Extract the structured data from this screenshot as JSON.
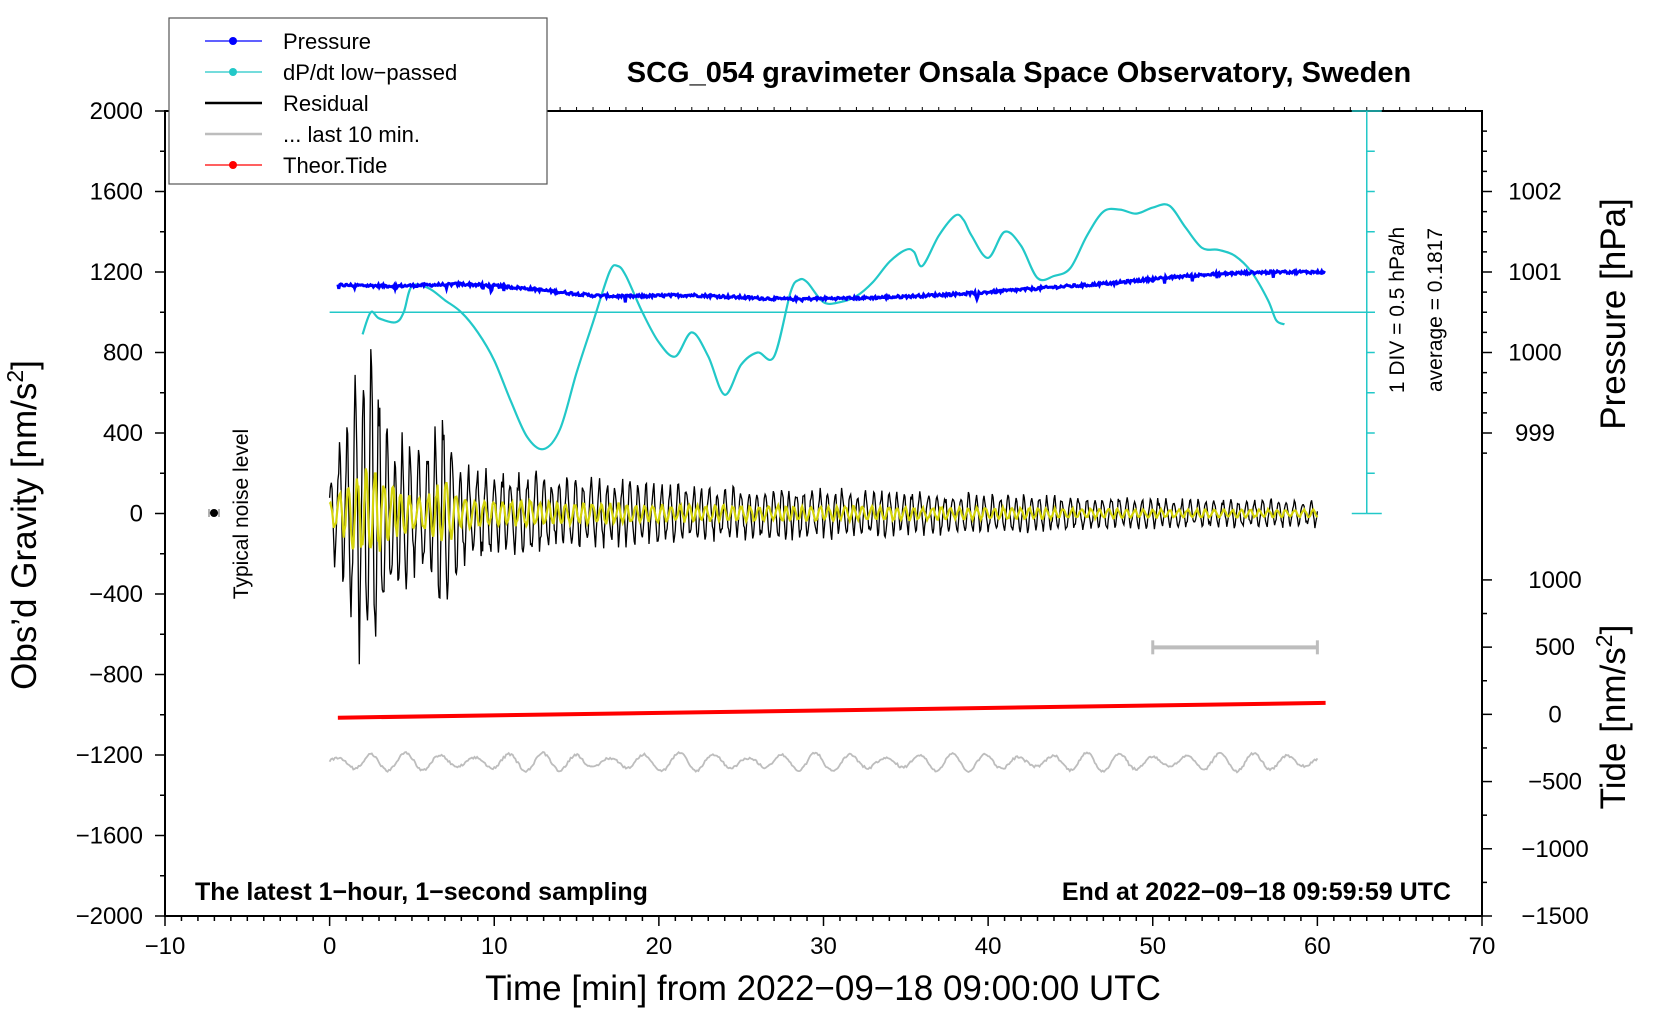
{
  "chart_data": {
    "type": "line",
    "title": "SCG_054 gravimeter Onsala Space Observatory, Sweden",
    "xlabel": "Time [min] from 2022−09−18 09:00:00 UTC",
    "ylabel_left": "Obs’d Gravity [nm/s",
    "ylabel_left_sup": "2",
    "ylabel_left_end": "]",
    "ylabel_pressure": "Pressure [hPa]",
    "ylabel_tide": "Tide [nm/s",
    "ylabel_tide_sup": "2",
    "ylabel_tide_end": "]",
    "xlim": [
      -10,
      70
    ],
    "ylim": [
      -2000,
      2000
    ],
    "x_ticks": [
      {
        "v": -10,
        "label": "−10"
      },
      {
        "v": 0,
        "label": "0"
      },
      {
        "v": 10,
        "label": "10"
      },
      {
        "v": 20,
        "label": "20"
      },
      {
        "v": 30,
        "label": "30"
      },
      {
        "v": 40,
        "label": "40"
      },
      {
        "v": 50,
        "label": "50"
      },
      {
        "v": 60,
        "label": "60"
      },
      {
        "v": 70,
        "label": "70"
      }
    ],
    "y_ticks": [
      {
        "v": 2000,
        "label": "2000"
      },
      {
        "v": 1600,
        "label": "1600"
      },
      {
        "v": 1200,
        "label": "1200"
      },
      {
        "v": 800,
        "label": "800"
      },
      {
        "v": 400,
        "label": "400"
      },
      {
        "v": 0,
        "label": "0"
      },
      {
        "v": -400,
        "label": "−400"
      },
      {
        "v": -800,
        "label": "−800"
      },
      {
        "v": -1200,
        "label": "−1200"
      },
      {
        "v": -1600,
        "label": "−1600"
      },
      {
        "v": -2000,
        "label": "−2000"
      }
    ],
    "pressure_axis": {
      "unit_ratio": "400 nm/s2 per hPa",
      "zero_hPa_at_gravity": -2800,
      "ticks": [
        {
          "v": 1002,
          "label": "1002"
        },
        {
          "v": 1001,
          "label": "1001"
        },
        {
          "v": 1000,
          "label": "1000"
        },
        {
          "v": 999,
          "label": "999"
        }
      ]
    },
    "tide_axis": {
      "range": [
        -1500,
        1000
      ],
      "gravity_at_tide_1000": -330,
      "gravity_at_tide_-1500": -2000,
      "ticks": [
        {
          "v": 1000,
          "label": "1000"
        },
        {
          "v": 500,
          "label": "500"
        },
        {
          "v": 0,
          "label": "0"
        },
        {
          "v": -500,
          "label": "−500"
        },
        {
          "v": -1000,
          "label": "−1000"
        },
        {
          "v": -1500,
          "label": "−1500"
        }
      ]
    },
    "legend": [
      {
        "label": "Pressure",
        "color": "#0000ff",
        "marker": true,
        "thick": false
      },
      {
        "label": "dP/dt low−passed",
        "color": "#22c8c8",
        "marker": true,
        "thick": false
      },
      {
        "label": "Residual",
        "color": "#000000",
        "marker": false,
        "thick": true
      },
      {
        "label": "... last 10 min.",
        "color": "#bdbdbd",
        "marker": false,
        "thick": true
      },
      {
        "label": "Theor.Tide",
        "color": "#ff0000",
        "marker": true,
        "thick": false
      }
    ],
    "legend_position": "top-left",
    "annotations": {
      "noise_label": "Typical noise level",
      "div_label": "1 DIV = 0.5 hPa/h",
      "avg_label": "average = 0.1817",
      "bottom_left": "The latest 1−hour, 1−second sampling",
      "bottom_right": "End at 2022−09−18 09:59:59 UTC"
    },
    "colors": {
      "pressure": "#0000ff",
      "dpdt": "#22c8c8",
      "residual": "#000000",
      "residual_smooth": "#d4d40a",
      "last10": "#bdbdbd",
      "tide": "#ff0000"
    },
    "series": [
      {
        "name": "Pressure",
        "unit": "gravity-axis units",
        "x": [
          0.5,
          2,
          4,
          6,
          8,
          10,
          12,
          14,
          16,
          18,
          20,
          22,
          24,
          26,
          28,
          30,
          32,
          34,
          36,
          38,
          40,
          42,
          44,
          46,
          48,
          50,
          52,
          54,
          56,
          58,
          60.5
        ],
        "values": [
          1135,
          1133,
          1130,
          1135,
          1140,
          1132,
          1118,
          1100,
          1083,
          1078,
          1082,
          1085,
          1078,
          1070,
          1065,
          1068,
          1070,
          1075,
          1082,
          1090,
          1100,
          1112,
          1125,
          1135,
          1148,
          1165,
          1180,
          1190,
          1197,
          1200,
          1200
        ]
      },
      {
        "name": "dP/dt low-passed",
        "unit": "gravity-axis units",
        "average_line": 1000,
        "x": [
          2,
          2.5,
          3,
          4,
          4.5,
          5,
          6,
          7,
          8,
          9,
          10,
          11,
          12,
          13,
          14,
          15,
          16,
          17,
          17.5,
          18,
          19,
          20,
          21,
          22,
          23,
          24,
          25,
          26,
          27,
          28,
          28.5,
          29,
          30,
          31,
          32,
          33,
          34,
          35,
          35.5,
          36,
          37,
          38,
          38.5,
          39,
          40,
          41,
          42,
          43,
          44,
          45,
          46,
          47,
          48,
          49,
          50,
          51,
          52,
          53,
          54,
          55,
          56,
          57,
          57.5,
          58
        ],
        "values": [
          890,
          1000,
          970,
          950,
          1000,
          1130,
          1120,
          1060,
          1000,
          900,
          760,
          560,
          380,
          320,
          420,
          700,
          950,
          1200,
          1230,
          1180,
          1000,
          850,
          780,
          900,
          780,
          590,
          740,
          800,
          780,
          1100,
          1160,
          1150,
          1050,
          1050,
          1080,
          1150,
          1250,
          1310,
          1300,
          1230,
          1380,
          1480,
          1460,
          1380,
          1270,
          1400,
          1330,
          1170,
          1180,
          1220,
          1380,
          1500,
          1510,
          1490,
          1520,
          1530,
          1420,
          1320,
          1310,
          1280,
          1200,
          1060,
          960,
          940
        ]
      },
      {
        "name": "Residual",
        "unit": "nm/s2",
        "envelope": {
          "x": [
            0,
            1,
            1.5,
            2,
            2.5,
            3,
            4,
            5,
            6,
            7,
            8,
            9,
            10,
            12,
            14,
            16,
            18,
            20,
            25,
            30,
            35,
            40,
            45,
            50,
            55,
            60
          ],
          "amplitude": [
            200,
            500,
            700,
            800,
            900,
            700,
            450,
            350,
            350,
            600,
            280,
            250,
            220,
            230,
            200,
            190,
            180,
            160,
            140,
            140,
            120,
            110,
            90,
            80,
            75,
            75
          ]
        },
        "period_min": 0.5
      },
      {
        "name": "Residual smoothed",
        "unit": "nm/s2",
        "envelope_scale": 0.3
      },
      {
        "name": "Theor.Tide",
        "unit": "tide nm/s2",
        "x": [
          0.5,
          60.5
        ],
        "values": [
          -25,
          85
        ]
      },
      {
        "name": "last 10 min.",
        "unit": "nm/s2",
        "baseline": -1235,
        "amplitude": 45
      }
    ],
    "scale_bar": {
      "x": [
        50,
        60
      ],
      "y": -665
    }
  }
}
